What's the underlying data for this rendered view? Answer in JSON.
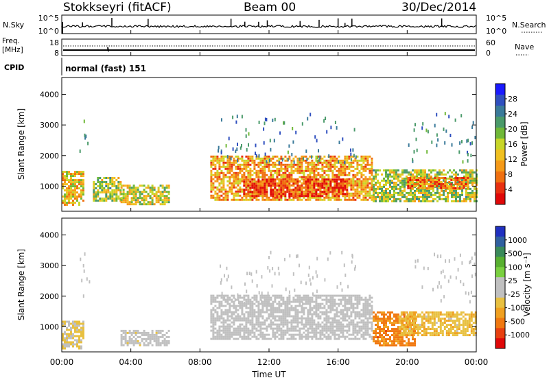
{
  "header": {
    "station": "Stokkseyri (fitACF)",
    "beam": "Beam 00",
    "date": "30/Dec/2014"
  },
  "panels": {
    "nsky": {
      "left_label": "N.Sky",
      "left_ticks": [
        "10^5",
        "10^0"
      ],
      "right_label": "N.Search",
      "right_ticks": [
        "10^5",
        "10^0"
      ]
    },
    "freq": {
      "left_label_1": "Freq.",
      "left_label_2": "[MHz]",
      "left_ticks": [
        "18",
        "8"
      ],
      "right_label": "Nave",
      "right_ticks": [
        "60",
        "0"
      ]
    },
    "cpid": {
      "label": "CPID",
      "mode": "normal (fast) 151"
    }
  },
  "colorbars": {
    "power": {
      "label": "Power [dB]",
      "ticks": [
        "28",
        "24",
        "20",
        "16",
        "12",
        "8",
        "4"
      ],
      "colors": [
        "#1a1aff",
        "#2f4fbf",
        "#3a7a9a",
        "#4a9a6a",
        "#70b838",
        "#c8d628",
        "#f0c020",
        "#f59a18",
        "#f07010",
        "#e83010",
        "#e00808"
      ]
    },
    "velocity": {
      "label": "Velocity [m s⁻¹]",
      "ticks": [
        "1000",
        "500",
        "100",
        "25",
        "-25",
        "-100",
        "-500",
        "-1000"
      ],
      "colors": [
        "#2030c0",
        "#3060a0",
        "#3a8a5a",
        "#58b030",
        "#7ad040",
        "#c0c0c0",
        "#c0c0c0",
        "#e8c040",
        "#f0a020",
        "#f07810",
        "#e84010",
        "#e00808"
      ]
    }
  },
  "axes": {
    "xlabel": "Time UT",
    "xticks": [
      "00:00",
      "04:00",
      "08:00",
      "12:00",
      "16:00",
      "20:00",
      "00:00"
    ],
    "ylabel": "Slant Range [km]",
    "yticks": [
      "1000",
      "2000",
      "3000",
      "4000"
    ]
  },
  "chart_data": {
    "type": "heatmap",
    "x_range_hours": [
      0,
      24
    ],
    "y_range_km": [
      180,
      4550
    ],
    "xlabel": "Time UT",
    "ylabel": "Slant Range [km]",
    "xticks": [
      "00:00",
      "04:00",
      "08:00",
      "12:00",
      "16:00",
      "20:00",
      "00:00"
    ],
    "yticks": [
      1000,
      2000,
      3000,
      4000
    ],
    "power_scale_db": [
      0,
      30
    ],
    "velocity_scale_ms": [
      -1000,
      1000
    ],
    "power_regions": [
      {
        "t0": 0.0,
        "t1": 1.3,
        "r0": 400,
        "r1": 1500,
        "db": 18
      },
      {
        "t0": 1.8,
        "t1": 3.4,
        "r0": 500,
        "r1": 1300,
        "db": 14
      },
      {
        "t0": 3.4,
        "t1": 6.2,
        "r0": 380,
        "r1": 1050,
        "db": 16
      },
      {
        "t0": 8.6,
        "t1": 17.9,
        "r0": 550,
        "r1": 2000,
        "db": 20
      },
      {
        "t0": 10.5,
        "t1": 16.5,
        "r0": 650,
        "r1": 1250,
        "db": 26
      },
      {
        "t0": 18.0,
        "t1": 24.0,
        "r0": 500,
        "r1": 1550,
        "db": 14
      },
      {
        "t0": 20.0,
        "t1": 23.5,
        "r0": 950,
        "r1": 1300,
        "db": 22
      }
    ],
    "velocity_regions": [
      {
        "t0": 0.0,
        "t1": 1.3,
        "r0": 300,
        "r1": 1200,
        "v": -200
      },
      {
        "t0": 3.4,
        "t1": 6.2,
        "r0": 400,
        "r1": 900,
        "v": -60
      },
      {
        "t0": 8.6,
        "t1": 17.9,
        "r0": 600,
        "r1": 2050,
        "v": 0
      },
      {
        "t0": 18.0,
        "t1": 20.5,
        "r0": 400,
        "r1": 1500,
        "v": -600
      },
      {
        "t0": 19.5,
        "t1": 24.0,
        "r0": 700,
        "r1": 1500,
        "v": -300
      }
    ],
    "nsky_spikes_hours": [
      1.2,
      2.9,
      5.0,
      9.8,
      10.6,
      11.4,
      11.9,
      13.8,
      14.9,
      16.0,
      16.4,
      16.8,
      22.0
    ]
  }
}
